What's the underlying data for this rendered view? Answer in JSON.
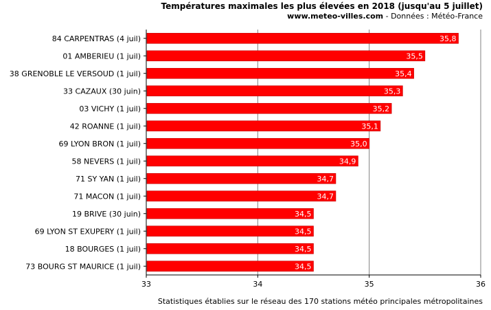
{
  "header": {
    "title": "Températures maximales les plus élevées en 2018 (jusqu'au 5 juillet)",
    "site": "www.meteo-villes.com",
    "source": " - Données : Météo-France"
  },
  "footer": {
    "note": "Statistiques établies sur le réseau des 170 stations météo principales métropolitaines"
  },
  "colors": {
    "bar": "#ff0000",
    "grid": "#808080",
    "axis": "#000000",
    "value_label": "#ffffff"
  },
  "chart_data": {
    "type": "bar",
    "orientation": "horizontal",
    "title": "Températures maximales les plus élevées en 2018 (jusqu'au 5 juillet)",
    "xlabel": "",
    "ylabel": "",
    "xlim": [
      33,
      36
    ],
    "x_ticks": [
      33,
      34,
      35,
      36
    ],
    "grid": true,
    "categories": [
      "84 CARPENTRAS (4 juil)",
      "01 AMBERIEU (1 juil)",
      "38 GRENOBLE LE VERSOUD (1 juil)",
      "33 CAZAUX (30 juin)",
      "03 VICHY (1 juil)",
      "42 ROANNE (1 juil)",
      "69 LYON BRON (1 juil)",
      "58 NEVERS (1 juil)",
      "71 SY YAN (1 juil)",
      "71 MACON (1 juil)",
      "19 BRIVE (30 juin)",
      "69 LYON ST EXUPERY (1 juil)",
      "18 BOURGES (1 juil)",
      "73 BOURG ST MAURICE (1 juil)"
    ],
    "values": [
      35.8,
      35.5,
      35.4,
      35.3,
      35.2,
      35.1,
      35.0,
      34.9,
      34.7,
      34.7,
      34.5,
      34.5,
      34.5,
      34.5
    ],
    "value_labels": [
      "35,8",
      "35,5",
      "35,4",
      "35,3",
      "35,2",
      "35,1",
      "35,0",
      "34,9",
      "34,7",
      "34,7",
      "34,5",
      "34,5",
      "34,5",
      "34,5"
    ]
  }
}
